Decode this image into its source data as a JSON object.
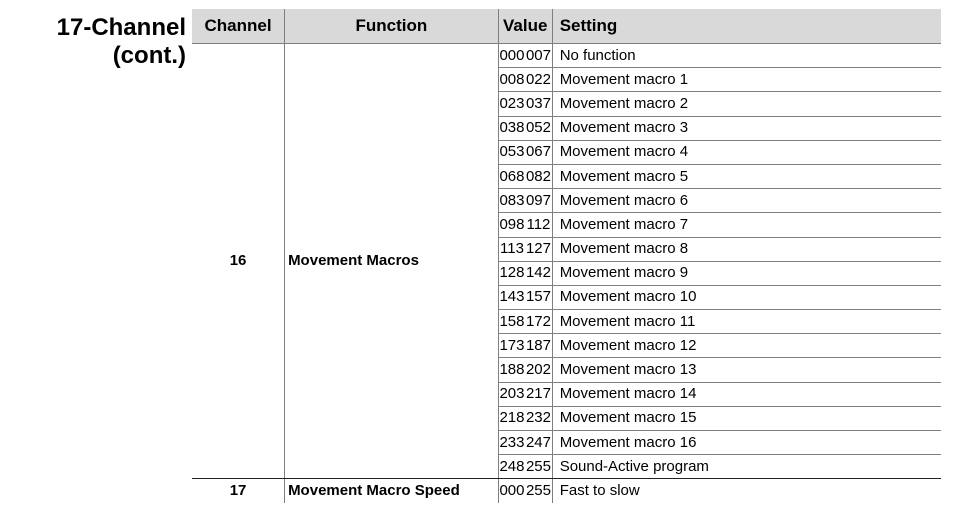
{
  "section": {
    "title_line1": "17-Channel",
    "title_line2": "(cont.)"
  },
  "table": {
    "headers": {
      "channel": "Channel",
      "function": "Function",
      "value": "Value",
      "setting": "Setting"
    },
    "groups": [
      {
        "channel": "16",
        "function": "Movement Macros",
        "rows": [
          {
            "from": "000",
            "to": "007",
            "setting": "No function"
          },
          {
            "from": "008",
            "to": "022",
            "setting": "Movement macro 1"
          },
          {
            "from": "023",
            "to": "037",
            "setting": "Movement macro 2"
          },
          {
            "from": "038",
            "to": "052",
            "setting": "Movement macro 3"
          },
          {
            "from": "053",
            "to": "067",
            "setting": "Movement macro 4"
          },
          {
            "from": "068",
            "to": "082",
            "setting": "Movement macro 5"
          },
          {
            "from": "083",
            "to": "097",
            "setting": "Movement macro 6"
          },
          {
            "from": "098",
            "to": "112",
            "setting": "Movement macro 7"
          },
          {
            "from": "113",
            "to": "127",
            "setting": "Movement macro 8"
          },
          {
            "from": "128",
            "to": "142",
            "setting": "Movement macro 9"
          },
          {
            "from": "143",
            "to": "157",
            "setting": "Movement macro 10"
          },
          {
            "from": "158",
            "to": "172",
            "setting": "Movement macro 11"
          },
          {
            "from": "173",
            "to": "187",
            "setting": "Movement macro 12"
          },
          {
            "from": "188",
            "to": "202",
            "setting": "Movement macro 13"
          },
          {
            "from": "203",
            "to": "217",
            "setting": "Movement macro 14"
          },
          {
            "from": "218",
            "to": "232",
            "setting": "Movement macro 15"
          },
          {
            "from": "233",
            "to": "247",
            "setting": "Movement macro 16"
          },
          {
            "from": "248",
            "to": "255",
            "setting": "Sound-Active program"
          }
        ]
      },
      {
        "channel": "17",
        "function": "Movement Macro Speed",
        "rows": [
          {
            "from": "000",
            "to": "255",
            "setting": "Fast to slow"
          }
        ]
      }
    ]
  }
}
